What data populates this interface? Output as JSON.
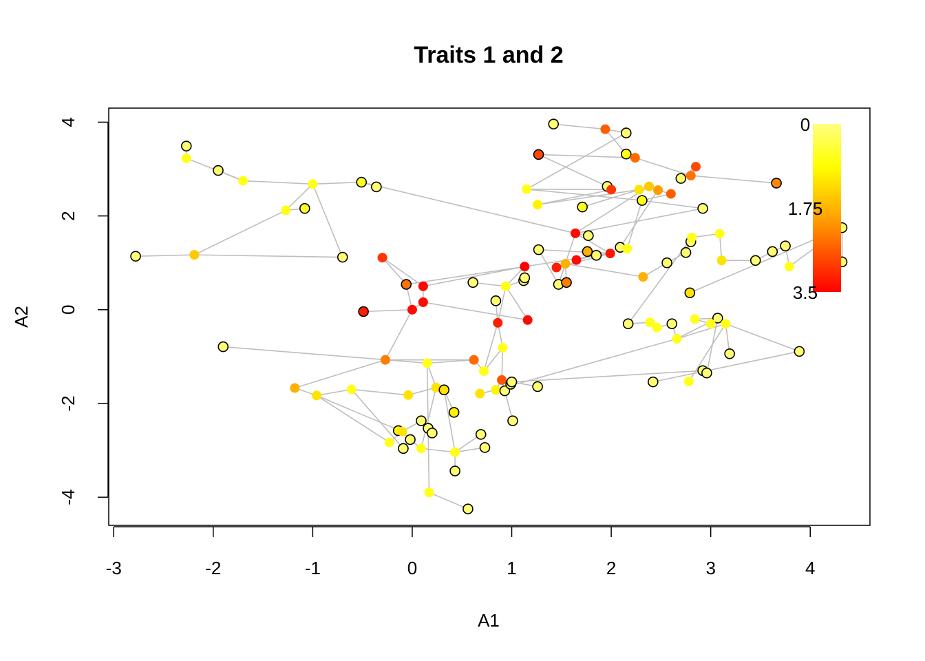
{
  "chart_data": {
    "type": "scatter",
    "title": "Traits 1 and 2",
    "xlabel": "A1",
    "ylabel": "A2",
    "xlim": [
      -3.05,
      4.6
    ],
    "ylim": [
      -4.6,
      4.3
    ],
    "x_ticks": [
      -3,
      -2,
      -1,
      0,
      1,
      2,
      3,
      4
    ],
    "y_ticks": [
      -4,
      -2,
      0,
      2,
      4
    ],
    "x_tick_labels": [
      "-3",
      "-2",
      "-1",
      "0",
      "1",
      "2",
      "3",
      "4"
    ],
    "y_tick_labels": [
      "-4",
      "-2",
      "0",
      "2",
      "4"
    ],
    "edge_color": "#BEBEBE",
    "color_scale": {
      "title": "",
      "min": 0,
      "max": 3.5,
      "labels": [
        "0",
        "1.75",
        "3.5"
      ],
      "colors": [
        "#FFFF80",
        "#FFFF00",
        "#FFA500",
        "#FF0000"
      ],
      "placement": "top-right"
    },
    "points": [
      {
        "x": -2.27,
        "y": 3.49,
        "v": 0.1,
        "tip": true
      },
      {
        "x": -2.27,
        "y": 3.23,
        "v": 0.7,
        "tip": false
      },
      {
        "x": -1.95,
        "y": 2.97,
        "v": 0.1,
        "tip": true
      },
      {
        "x": -1.7,
        "y": 2.75,
        "v": 0.7,
        "tip": false
      },
      {
        "x": -1.0,
        "y": 2.68,
        "v": 0.7,
        "tip": false
      },
      {
        "x": -1.27,
        "y": 2.12,
        "v": 0.7,
        "tip": false
      },
      {
        "x": -1.08,
        "y": 2.16,
        "v": 0.6,
        "tip": true
      },
      {
        "x": -0.51,
        "y": 2.72,
        "v": 0.6,
        "tip": true
      },
      {
        "x": -0.36,
        "y": 2.62,
        "v": 0.1,
        "tip": true
      },
      {
        "x": -0.7,
        "y": 1.12,
        "v": 0.1,
        "tip": true
      },
      {
        "x": -2.78,
        "y": 1.14,
        "v": 0.1,
        "tip": true
      },
      {
        "x": -2.19,
        "y": 1.17,
        "v": 1.5,
        "tip": false
      },
      {
        "x": -0.3,
        "y": 1.11,
        "v": 3.0,
        "tip": false
      },
      {
        "x": -0.06,
        "y": 0.54,
        "v": 2.4,
        "tip": true
      },
      {
        "x": 0.11,
        "y": 0.5,
        "v": 3.4,
        "tip": false
      },
      {
        "x": 0.11,
        "y": 0.16,
        "v": 3.4,
        "tip": false
      },
      {
        "x": 0.0,
        "y": 0.0,
        "v": 3.4,
        "tip": false
      },
      {
        "x": -0.49,
        "y": -0.04,
        "v": 3.2,
        "tip": true
      },
      {
        "x": -1.9,
        "y": -0.79,
        "v": 0.1,
        "tip": true
      },
      {
        "x": 0.61,
        "y": 0.58,
        "v": 0.1,
        "tip": true
      },
      {
        "x": 0.94,
        "y": 0.5,
        "v": 0.7,
        "tip": false
      },
      {
        "x": 0.84,
        "y": 0.19,
        "v": 0.1,
        "tip": true
      },
      {
        "x": 1.12,
        "y": 0.62,
        "v": 0.1,
        "tip": true
      },
      {
        "x": 1.13,
        "y": 0.68,
        "v": 0.1,
        "tip": true
      },
      {
        "x": 1.13,
        "y": 0.92,
        "v": 3.5,
        "tip": false
      },
      {
        "x": 0.86,
        "y": -0.28,
        "v": 3.2,
        "tip": false
      },
      {
        "x": 1.16,
        "y": -0.22,
        "v": 3.4,
        "tip": false
      },
      {
        "x": 0.91,
        "y": -0.81,
        "v": 0.7,
        "tip": false
      },
      {
        "x": -0.27,
        "y": -1.07,
        "v": 2.3,
        "tip": false
      },
      {
        "x": 0.15,
        "y": -1.14,
        "v": 0.7,
        "tip": false
      },
      {
        "x": 0.62,
        "y": -1.07,
        "v": 2.5,
        "tip": false
      },
      {
        "x": 0.72,
        "y": -1.31,
        "v": 0.7,
        "tip": false
      },
      {
        "x": -1.18,
        "y": -1.67,
        "v": 1.8,
        "tip": false
      },
      {
        "x": -0.96,
        "y": -1.83,
        "v": 1.2,
        "tip": false
      },
      {
        "x": -0.61,
        "y": -1.7,
        "v": 0.7,
        "tip": false
      },
      {
        "x": -0.04,
        "y": -1.82,
        "v": 1.2,
        "tip": false
      },
      {
        "x": 0.24,
        "y": -1.66,
        "v": 1.2,
        "tip": false
      },
      {
        "x": 0.32,
        "y": -1.71,
        "v": 1.2,
        "tip": true
      },
      {
        "x": 0.42,
        "y": -2.19,
        "v": 1.0,
        "tip": true
      },
      {
        "x": 0.68,
        "y": -1.79,
        "v": 1.2,
        "tip": false
      },
      {
        "x": 0.84,
        "y": -1.71,
        "v": 1.0,
        "tip": false
      },
      {
        "x": 0.9,
        "y": -1.5,
        "v": 2.7,
        "tip": false
      },
      {
        "x": 0.93,
        "y": -1.73,
        "v": 0.1,
        "tip": true
      },
      {
        "x": 0.99,
        "y": -1.59,
        "v": 0.1,
        "tip": true
      },
      {
        "x": 1.0,
        "y": -1.54,
        "v": 0.1,
        "tip": true
      },
      {
        "x": 1.01,
        "y": -2.37,
        "v": 0.1,
        "tip": true
      },
      {
        "x": 1.26,
        "y": -1.64,
        "v": 0.1,
        "tip": true
      },
      {
        "x": -0.14,
        "y": -2.58,
        "v": 1.0,
        "tip": true
      },
      {
        "x": -0.1,
        "y": -2.6,
        "v": 1.2,
        "tip": false
      },
      {
        "x": 0.09,
        "y": -2.37,
        "v": 0.1,
        "tip": true
      },
      {
        "x": 0.16,
        "y": -2.53,
        "v": 0.1,
        "tip": true
      },
      {
        "x": 0.2,
        "y": -2.63,
        "v": 0.1,
        "tip": true
      },
      {
        "x": -0.23,
        "y": -2.83,
        "v": 0.7,
        "tip": false
      },
      {
        "x": -0.02,
        "y": -2.77,
        "v": 0.1,
        "tip": true
      },
      {
        "x": -0.09,
        "y": -2.96,
        "v": 0.1,
        "tip": true
      },
      {
        "x": 0.09,
        "y": -2.96,
        "v": 0.7,
        "tip": false
      },
      {
        "x": 0.43,
        "y": -3.04,
        "v": 0.7,
        "tip": false
      },
      {
        "x": 0.69,
        "y": -2.66,
        "v": 0.1,
        "tip": true
      },
      {
        "x": 0.73,
        "y": -2.94,
        "v": 0.1,
        "tip": true
      },
      {
        "x": 0.43,
        "y": -3.44,
        "v": 0.1,
        "tip": true
      },
      {
        "x": 0.17,
        "y": -3.9,
        "v": 0.7,
        "tip": false
      },
      {
        "x": 0.56,
        "y": -4.25,
        "v": 0.1,
        "tip": true
      },
      {
        "x": 1.42,
        "y": 3.96,
        "v": 0.1,
        "tip": true
      },
      {
        "x": 1.94,
        "y": 3.85,
        "v": 2.6,
        "tip": false
      },
      {
        "x": 2.15,
        "y": 3.77,
        "v": 0.1,
        "tip": true
      },
      {
        "x": 2.15,
        "y": 3.32,
        "v": 0.7,
        "tip": true
      },
      {
        "x": 2.24,
        "y": 3.24,
        "v": 2.5,
        "tip": false
      },
      {
        "x": 1.27,
        "y": 3.31,
        "v": 2.8,
        "tip": true
      },
      {
        "x": 2.85,
        "y": 3.05,
        "v": 2.8,
        "tip": false
      },
      {
        "x": 2.8,
        "y": 2.86,
        "v": 2.4,
        "tip": false
      },
      {
        "x": 2.7,
        "y": 2.8,
        "v": 0.1,
        "tip": true
      },
      {
        "x": 3.66,
        "y": 2.7,
        "v": 2.2,
        "tip": true
      },
      {
        "x": 1.15,
        "y": 2.57,
        "v": 0.7,
        "tip": false
      },
      {
        "x": 1.26,
        "y": 2.24,
        "v": 1.0,
        "tip": false
      },
      {
        "x": 1.71,
        "y": 2.19,
        "v": 0.7,
        "tip": true
      },
      {
        "x": 1.96,
        "y": 2.63,
        "v": 0.1,
        "tip": true
      },
      {
        "x": 2.0,
        "y": 2.56,
        "v": 3.0,
        "tip": false
      },
      {
        "x": 2.28,
        "y": 2.56,
        "v": 1.2,
        "tip": false
      },
      {
        "x": 2.38,
        "y": 2.63,
        "v": 1.5,
        "tip": false
      },
      {
        "x": 2.47,
        "y": 2.55,
        "v": 2.0,
        "tip": false
      },
      {
        "x": 2.6,
        "y": 2.47,
        "v": 2.6,
        "tip": false
      },
      {
        "x": 2.31,
        "y": 2.33,
        "v": 0.7,
        "tip": true
      },
      {
        "x": 2.92,
        "y": 2.16,
        "v": 0.1,
        "tip": true
      },
      {
        "x": 1.64,
        "y": 1.63,
        "v": 3.4,
        "tip": false
      },
      {
        "x": 1.77,
        "y": 1.58,
        "v": 0.1,
        "tip": true
      },
      {
        "x": 1.27,
        "y": 1.28,
        "v": 0.1,
        "tip": true
      },
      {
        "x": 1.76,
        "y": 1.24,
        "v": 1.8,
        "tip": true
      },
      {
        "x": 1.85,
        "y": 1.16,
        "v": 0.1,
        "tip": true
      },
      {
        "x": 1.99,
        "y": 1.2,
        "v": 3.3,
        "tip": false
      },
      {
        "x": 2.09,
        "y": 1.33,
        "v": 0.1,
        "tip": true
      },
      {
        "x": 2.16,
        "y": 1.3,
        "v": 0.7,
        "tip": false
      },
      {
        "x": 1.65,
        "y": 1.06,
        "v": 3.4,
        "tip": false
      },
      {
        "x": 1.45,
        "y": 0.9,
        "v": 3.2,
        "tip": false
      },
      {
        "x": 1.54,
        "y": 0.98,
        "v": 1.8,
        "tip": false
      },
      {
        "x": 1.47,
        "y": 0.54,
        "v": 0.1,
        "tip": true
      },
      {
        "x": 1.55,
        "y": 0.58,
        "v": 2.3,
        "tip": true
      },
      {
        "x": 2.32,
        "y": 0.7,
        "v": 1.8,
        "tip": false
      },
      {
        "x": 2.56,
        "y": 1.0,
        "v": 0.1,
        "tip": true
      },
      {
        "x": 2.75,
        "y": 1.22,
        "v": 0.1,
        "tip": true
      },
      {
        "x": 2.8,
        "y": 1.45,
        "v": 0.1,
        "tip": true
      },
      {
        "x": 2.81,
        "y": 1.54,
        "v": 0.7,
        "tip": false
      },
      {
        "x": 3.09,
        "y": 1.62,
        "v": 0.7,
        "tip": false
      },
      {
        "x": 3.11,
        "y": 1.05,
        "v": 1.2,
        "tip": false
      },
      {
        "x": 3.45,
        "y": 1.05,
        "v": 0.1,
        "tip": true
      },
      {
        "x": 3.62,
        "y": 1.24,
        "v": 0.1,
        "tip": true
      },
      {
        "x": 3.75,
        "y": 1.36,
        "v": 0.1,
        "tip": true
      },
      {
        "x": 3.79,
        "y": 0.92,
        "v": 0.7,
        "tip": false
      },
      {
        "x": 4.32,
        "y": 1.75,
        "v": 0.1,
        "tip": true
      },
      {
        "x": 4.32,
        "y": 1.02,
        "v": 0.1,
        "tip": true
      },
      {
        "x": 2.79,
        "y": 0.36,
        "v": 1.2,
        "tip": true
      },
      {
        "x": 2.17,
        "y": -0.3,
        "v": 0.1,
        "tip": true
      },
      {
        "x": 2.39,
        "y": -0.27,
        "v": 0.7,
        "tip": false
      },
      {
        "x": 2.46,
        "y": -0.38,
        "v": 0.7,
        "tip": false
      },
      {
        "x": 2.61,
        "y": -0.3,
        "v": 0.1,
        "tip": true
      },
      {
        "x": 2.66,
        "y": -0.62,
        "v": 0.7,
        "tip": false
      },
      {
        "x": 2.84,
        "y": -0.2,
        "v": 0.7,
        "tip": false
      },
      {
        "x": 3.07,
        "y": -0.18,
        "v": 0.1,
        "tip": true
      },
      {
        "x": 3.0,
        "y": -0.3,
        "v": 0.7,
        "tip": false
      },
      {
        "x": 3.15,
        "y": -0.3,
        "v": 0.7,
        "tip": false
      },
      {
        "x": 3.19,
        "y": -0.94,
        "v": 0.1,
        "tip": true
      },
      {
        "x": 3.89,
        "y": -0.89,
        "v": 0.1,
        "tip": true
      },
      {
        "x": 2.42,
        "y": -1.54,
        "v": 0.1,
        "tip": true
      },
      {
        "x": 2.78,
        "y": -1.53,
        "v": 0.7,
        "tip": false
      },
      {
        "x": 2.92,
        "y": -1.3,
        "v": 0.1,
        "tip": true
      },
      {
        "x": 2.96,
        "y": -1.35,
        "v": 0.1,
        "tip": true
      }
    ],
    "edges": [
      [
        0,
        1
      ],
      [
        1,
        3
      ],
      [
        2,
        3
      ],
      [
        3,
        4
      ],
      [
        4,
        7
      ],
      [
        4,
        5
      ],
      [
        6,
        5
      ],
      [
        5,
        11
      ],
      [
        4,
        9
      ],
      [
        10,
        11
      ],
      [
        11,
        9
      ],
      [
        8,
        7
      ],
      [
        7,
        83
      ],
      [
        12,
        13
      ],
      [
        12,
        14
      ],
      [
        14,
        15
      ],
      [
        15,
        16
      ],
      [
        16,
        13
      ],
      [
        17,
        16
      ],
      [
        16,
        28
      ],
      [
        14,
        24
      ],
      [
        24,
        20
      ],
      [
        20,
        22
      ],
      [
        20,
        19
      ],
      [
        24,
        23
      ],
      [
        24,
        88
      ],
      [
        20,
        26
      ],
      [
        15,
        26
      ],
      [
        18,
        29
      ],
      [
        29,
        30
      ],
      [
        30,
        31
      ],
      [
        31,
        25
      ],
      [
        25,
        20
      ],
      [
        21,
        25
      ],
      [
        27,
        25
      ],
      [
        27,
        31
      ],
      [
        27,
        41
      ],
      [
        32,
        28
      ],
      [
        28,
        30
      ],
      [
        32,
        33
      ],
      [
        33,
        34
      ],
      [
        34,
        35
      ],
      [
        34,
        54
      ],
      [
        35,
        36
      ],
      [
        36,
        37
      ],
      [
        36,
        29
      ],
      [
        37,
        38
      ],
      [
        37,
        56
      ],
      [
        39,
        40
      ],
      [
        40,
        41
      ],
      [
        41,
        42
      ],
      [
        41,
        43
      ],
      [
        41,
        44
      ],
      [
        42,
        45
      ],
      [
        33,
        52
      ],
      [
        33,
        48
      ],
      [
        48,
        47
      ],
      [
        48,
        49
      ],
      [
        49,
        50
      ],
      [
        50,
        51
      ],
      [
        48,
        52
      ],
      [
        48,
        53
      ],
      [
        53,
        55
      ],
      [
        36,
        55
      ],
      [
        55,
        56
      ],
      [
        56,
        57
      ],
      [
        56,
        58
      ],
      [
        56,
        59
      ],
      [
        29,
        60
      ],
      [
        60,
        61
      ],
      [
        44,
        46
      ],
      [
        44,
        123
      ],
      [
        40,
        114
      ],
      [
        114,
        118
      ],
      [
        118,
        120
      ],
      [
        119,
        118
      ],
      [
        120,
        121
      ],
      [
        113,
        112
      ],
      [
        113,
        114
      ],
      [
        114,
        116
      ],
      [
        116,
        124
      ],
      [
        116,
        125
      ],
      [
        117,
        126
      ],
      [
        115,
        116
      ],
      [
        122,
        118
      ],
      [
        62,
        63
      ],
      [
        63,
        64
      ],
      [
        63,
        65
      ],
      [
        65,
        66
      ],
      [
        66,
        69
      ],
      [
        69,
        68
      ],
      [
        68,
        70
      ],
      [
        69,
        71
      ],
      [
        66,
        67
      ],
      [
        67,
        75
      ],
      [
        72,
        76
      ],
      [
        72,
        81
      ],
      [
        73,
        76
      ],
      [
        73,
        77
      ],
      [
        74,
        77
      ],
      [
        77,
        78
      ],
      [
        78,
        79
      ],
      [
        79,
        80
      ],
      [
        80,
        81
      ],
      [
        81,
        82
      ],
      [
        81,
        90
      ],
      [
        79,
        89
      ],
      [
        83,
        88
      ],
      [
        84,
        83
      ],
      [
        85,
        88
      ],
      [
        86,
        88
      ],
      [
        87,
        91
      ],
      [
        88,
        92
      ],
      [
        92,
        93
      ],
      [
        93,
        95
      ],
      [
        93,
        94
      ],
      [
        93,
        96
      ],
      [
        96,
        97
      ],
      [
        97,
        98
      ],
      [
        98,
        99
      ],
      [
        98,
        100
      ],
      [
        100,
        101
      ],
      [
        101,
        102
      ],
      [
        102,
        103
      ],
      [
        103,
        104
      ],
      [
        104,
        105
      ],
      [
        105,
        106
      ],
      [
        106,
        107
      ],
      [
        107,
        108
      ],
      [
        107,
        109
      ],
      [
        100,
        98
      ],
      [
        78,
        83
      ],
      [
        64,
        72
      ],
      [
        82,
        83
      ],
      [
        85,
        94
      ],
      [
        94,
        83
      ],
      [
        13,
        24
      ],
      [
        100,
        110
      ],
      [
        110,
        111
      ],
      [
        117,
        115
      ]
    ]
  }
}
